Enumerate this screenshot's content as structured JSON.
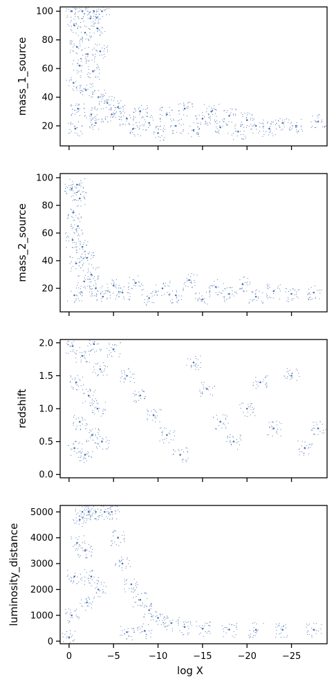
{
  "chart_data": [
    {
      "type": "scatter",
      "ylabel": "mass_1_source",
      "xlim": [
        1,
        -29
      ],
      "ylim": [
        6,
        103
      ],
      "yticks": [
        20,
        40,
        60,
        80,
        100
      ],
      "xticks": [
        0,
        -5,
        -10,
        -15,
        -20,
        -25
      ],
      "show_xtick_labels": false,
      "color": "#4C72B0",
      "points": [
        {
          "x": -0.3,
          "y": 100
        },
        {
          "x": -1.5,
          "y": 100
        },
        {
          "x": -2.8,
          "y": 100
        },
        {
          "x": -3.7,
          "y": 100
        },
        {
          "x": -0.6,
          "y": 90
        },
        {
          "x": -1.8,
          "y": 85
        },
        {
          "x": -3.2,
          "y": 88
        },
        {
          "x": -2.4,
          "y": 95
        },
        {
          "x": -0.9,
          "y": 75
        },
        {
          "x": -2.1,
          "y": 70
        },
        {
          "x": -3.5,
          "y": 72
        },
        {
          "x": -1.2,
          "y": 62
        },
        {
          "x": -2.7,
          "y": 58
        },
        {
          "x": -0.5,
          "y": 50
        },
        {
          "x": -1.9,
          "y": 45
        },
        {
          "x": -3.3,
          "y": 40
        },
        {
          "x": -1.0,
          "y": 32
        },
        {
          "x": -2.5,
          "y": 28
        },
        {
          "x": -3.0,
          "y": 22
        },
        {
          "x": -0.7,
          "y": 18
        },
        {
          "x": -4.3,
          "y": 36
        },
        {
          "x": -4.8,
          "y": 28
        },
        {
          "x": -5.5,
          "y": 33
        },
        {
          "x": -6.5,
          "y": 25
        },
        {
          "x": -7.2,
          "y": 18
        },
        {
          "x": -8.0,
          "y": 30
        },
        {
          "x": -9.0,
          "y": 22
        },
        {
          "x": -10.0,
          "y": 15
        },
        {
          "x": -11.0,
          "y": 28
        },
        {
          "x": -12.0,
          "y": 20
        },
        {
          "x": -13.0,
          "y": 32
        },
        {
          "x": -14.0,
          "y": 17
        },
        {
          "x": -15.0,
          "y": 25
        },
        {
          "x": -16.0,
          "y": 30
        },
        {
          "x": -17.0,
          "y": 19
        },
        {
          "x": -18.0,
          "y": 27
        },
        {
          "x": -19.0,
          "y": 16
        },
        {
          "x": -20.0,
          "y": 24
        },
        {
          "x": -21.0,
          "y": 20
        },
        {
          "x": -22.5,
          "y": 18
        },
        {
          "x": -24.0,
          "y": 22
        },
        {
          "x": -25.5,
          "y": 20
        },
        {
          "x": -28.0,
          "y": 23
        }
      ]
    },
    {
      "type": "scatter",
      "ylabel": "mass_2_source",
      "xlim": [
        1,
        -29
      ],
      "ylim": [
        3,
        103
      ],
      "yticks": [
        20,
        40,
        60,
        80,
        100
      ],
      "xticks": [
        0,
        -5,
        -10,
        -15,
        -20,
        -25
      ],
      "show_xtick_labels": false,
      "color": "#4C72B0",
      "points": [
        {
          "x": -0.3,
          "y": 92
        },
        {
          "x": -0.9,
          "y": 95
        },
        {
          "x": -1.2,
          "y": 85
        },
        {
          "x": -0.5,
          "y": 75
        },
        {
          "x": -1.0,
          "y": 65
        },
        {
          "x": -0.4,
          "y": 55
        },
        {
          "x": -1.5,
          "y": 50
        },
        {
          "x": -2.0,
          "y": 42
        },
        {
          "x": -0.8,
          "y": 38
        },
        {
          "x": -2.5,
          "y": 30
        },
        {
          "x": -1.7,
          "y": 25
        },
        {
          "x": -3.0,
          "y": 20
        },
        {
          "x": -0.6,
          "y": 15
        },
        {
          "x": -3.8,
          "y": 14
        },
        {
          "x": -5.0,
          "y": 22
        },
        {
          "x": -6.0,
          "y": 17
        },
        {
          "x": -7.5,
          "y": 24
        },
        {
          "x": -9.0,
          "y": 13
        },
        {
          "x": -10.5,
          "y": 20
        },
        {
          "x": -12.0,
          "y": 15
        },
        {
          "x": -13.5,
          "y": 26
        },
        {
          "x": -15.0,
          "y": 12
        },
        {
          "x": -16.5,
          "y": 21
        },
        {
          "x": -18.0,
          "y": 16
        },
        {
          "x": -19.5,
          "y": 23
        },
        {
          "x": -21.0,
          "y": 14
        },
        {
          "x": -23.0,
          "y": 18
        },
        {
          "x": -25.0,
          "y": 16
        },
        {
          "x": -27.5,
          "y": 17
        }
      ]
    },
    {
      "type": "scatter",
      "ylabel": "redshift",
      "xlim": [
        1,
        -29
      ],
      "ylim": [
        -0.05,
        2.05
      ],
      "yticks": [
        0.0,
        0.5,
        1.0,
        1.5,
        2.0
      ],
      "xticks": [
        0,
        -5,
        -10,
        -15,
        -20,
        -25
      ],
      "show_xtick_labels": false,
      "color": "#4C72B0",
      "points": [
        {
          "x": -0.4,
          "y": 1.95
        },
        {
          "x": -1.5,
          "y": 1.8
        },
        {
          "x": -2.8,
          "y": 1.98
        },
        {
          "x": -3.5,
          "y": 1.6
        },
        {
          "x": -0.8,
          "y": 1.4
        },
        {
          "x": -2.2,
          "y": 1.2
        },
        {
          "x": -3.2,
          "y": 1.0
        },
        {
          "x": -1.2,
          "y": 0.8
        },
        {
          "x": -2.6,
          "y": 0.6
        },
        {
          "x": -0.6,
          "y": 0.4
        },
        {
          "x": -1.8,
          "y": 0.3
        },
        {
          "x": -3.7,
          "y": 0.5
        },
        {
          "x": -5.0,
          "y": 1.9
        },
        {
          "x": -6.5,
          "y": 1.5
        },
        {
          "x": -8.0,
          "y": 1.2
        },
        {
          "x": -9.5,
          "y": 0.9
        },
        {
          "x": -11.0,
          "y": 0.6
        },
        {
          "x": -12.5,
          "y": 0.3
        },
        {
          "x": -14.0,
          "y": 1.7
        },
        {
          "x": -15.5,
          "y": 1.3
        },
        {
          "x": -17.0,
          "y": 0.8
        },
        {
          "x": -18.5,
          "y": 0.5
        },
        {
          "x": -20.0,
          "y": 1.0
        },
        {
          "x": -21.5,
          "y": 1.4
        },
        {
          "x": -23.0,
          "y": 0.7
        },
        {
          "x": -25.0,
          "y": 1.5
        },
        {
          "x": -26.5,
          "y": 0.4
        },
        {
          "x": -28.0,
          "y": 0.7
        }
      ]
    },
    {
      "type": "scatter",
      "ylabel": "luminosity_distance",
      "xlabel": "log X",
      "xlim": [
        1,
        -29
      ],
      "ylim": [
        -100,
        5250
      ],
      "yticks": [
        0,
        1000,
        2000,
        3000,
        4000,
        5000
      ],
      "xticks": [
        0,
        -5,
        -10,
        -15,
        -20,
        -25
      ],
      "show_xtick_labels": true,
      "color": "#4C72B0",
      "points": [
        {
          "x": 0.0,
          "y": 150
        },
        {
          "x": -0.3,
          "y": 1000
        },
        {
          "x": -0.6,
          "y": 2500
        },
        {
          "x": -0.9,
          "y": 3800
        },
        {
          "x": -1.2,
          "y": 4700
        },
        {
          "x": -1.5,
          "y": 5000
        },
        {
          "x": -2.2,
          "y": 5000
        },
        {
          "x": -3.0,
          "y": 5000
        },
        {
          "x": -4.0,
          "y": 5000
        },
        {
          "x": -4.8,
          "y": 5000
        },
        {
          "x": -1.8,
          "y": 3500
        },
        {
          "x": -2.5,
          "y": 2500
        },
        {
          "x": -3.3,
          "y": 2000
        },
        {
          "x": -2.0,
          "y": 1500
        },
        {
          "x": -5.5,
          "y": 4000
        },
        {
          "x": -6.0,
          "y": 3000
        },
        {
          "x": -7.0,
          "y": 2200
        },
        {
          "x": -8.0,
          "y": 1600
        },
        {
          "x": -9.0,
          "y": 1200
        },
        {
          "x": -10.0,
          "y": 900
        },
        {
          "x": -11.5,
          "y": 700
        },
        {
          "x": -13.0,
          "y": 550
        },
        {
          "x": -15.0,
          "y": 480
        },
        {
          "x": -18.0,
          "y": 450
        },
        {
          "x": -21.0,
          "y": 440
        },
        {
          "x": -24.0,
          "y": 440
        },
        {
          "x": -27.5,
          "y": 440
        },
        {
          "x": -6.5,
          "y": 350
        },
        {
          "x": -8.5,
          "y": 400
        }
      ]
    }
  ]
}
